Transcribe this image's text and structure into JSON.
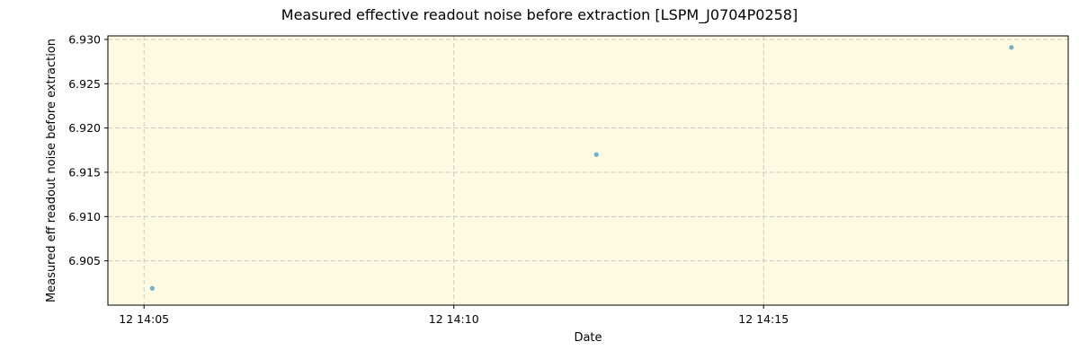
{
  "chart_data": {
    "type": "scatter",
    "title": "Measured effective readout noise before extraction [LSPM_J0704P0258]",
    "xlabel": "Date",
    "ylabel": "Measured eff readout noise before extraction",
    "x_ticks": [
      "12 14:05",
      "12 14:10",
      "12 14:15"
    ],
    "y_ticks": [
      "6.905",
      "6.910",
      "6.915",
      "6.920",
      "6.925",
      "6.930"
    ],
    "xlim": [
      "14:04:25",
      "14:19:55"
    ],
    "ylim": [
      6.9,
      6.9304
    ],
    "grid": true,
    "background_color": "#fcfae0",
    "point_color": "#5ba3c9",
    "series": [
      {
        "x": [
          "14:05:08",
          "14:12:18",
          "14:19:00"
        ],
        "y": [
          6.9019,
          6.917,
          6.9291
        ]
      }
    ]
  }
}
